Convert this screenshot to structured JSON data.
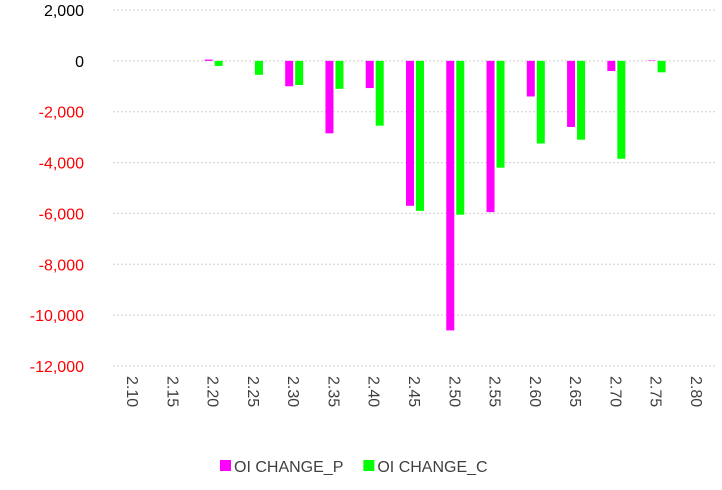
{
  "chart_data": {
    "type": "bar",
    "categories": [
      "2.10",
      "2.15",
      "2.20",
      "2.25",
      "2.30",
      "2.35",
      "2.40",
      "2.45",
      "2.50",
      "2.55",
      "2.60",
      "2.65",
      "2.70",
      "2.75",
      "2.80"
    ],
    "series": [
      {
        "name": "OI CHANGE_P",
        "color": "#ff00ff",
        "values": [
          0,
          0,
          50,
          0,
          -1000,
          -2850,
          -1070,
          -5700,
          -10600,
          -5950,
          -1400,
          -2600,
          -400,
          20,
          0
        ]
      },
      {
        "name": "OI CHANGE_C",
        "color": "#00ff00",
        "values": [
          0,
          0,
          -200,
          -550,
          -950,
          -1100,
          -2550,
          -5900,
          -6050,
          -4200,
          -3250,
          -3100,
          -3850,
          -450,
          0
        ]
      }
    ],
    "ylim": [
      -12000,
      2000
    ],
    "yticks": [
      {
        "value": 2000,
        "label": "2,000"
      },
      0,
      {
        "value": -2000,
        "label": "-2,000"
      },
      {
        "value": -4000,
        "label": "-4,000"
      },
      {
        "value": -6000,
        "label": "-6,000"
      },
      {
        "value": -8000,
        "label": "-8,000"
      },
      {
        "value": -10000,
        "label": "-10,000"
      },
      {
        "value": -12000,
        "label": "-12,000"
      }
    ],
    "negative_tick_color": "#ff0000",
    "grid": true,
    "legend": "bottom"
  }
}
